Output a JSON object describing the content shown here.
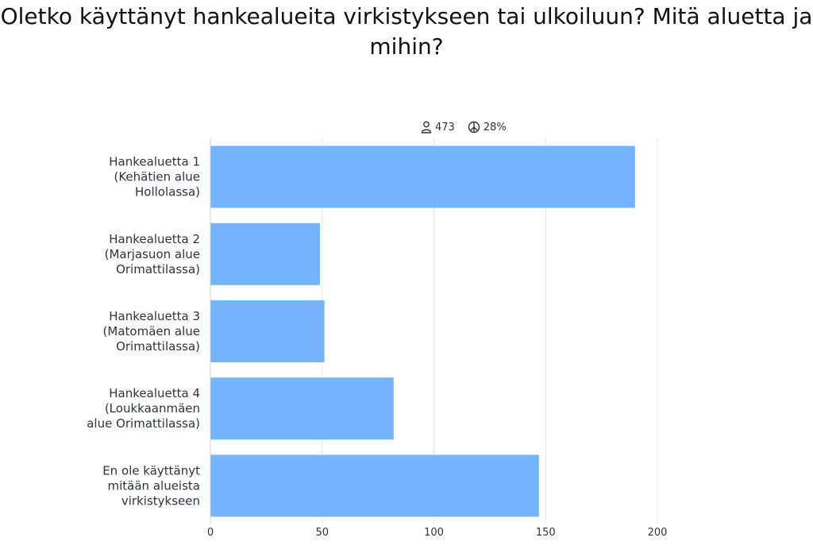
{
  "title": "Oletko käyttänyt hankealueita virkistykseen tai ulkoiluun? Mitä aluetta ja mihin?",
  "stats": {
    "respondents": "473",
    "percent": "28%",
    "respondents_icon": "person-icon",
    "percent_icon": "peace-icon"
  },
  "colors": {
    "bar": "#74b3fd",
    "grid": "#e6e6e6",
    "text": "#2b3440"
  },
  "chart_data": {
    "type": "bar",
    "orientation": "horizontal",
    "categories": [
      [
        "Hankealuetta 1",
        "(Kehätien alue",
        "Hollolassa)"
      ],
      [
        "Hankealuetta 2",
        "(Marjasuon alue",
        "Orimattilassa)"
      ],
      [
        "Hankealuetta 3",
        "(Matomäen alue",
        "Orimattilassa)"
      ],
      [
        "Hankealuetta 4",
        "(Loukkaanmäen",
        "alue Orimattilassa)"
      ],
      [
        "En ole käyttänyt",
        "mitään alueista",
        "virkistykseen"
      ]
    ],
    "values": [
      190,
      49,
      51,
      82,
      147
    ],
    "xlim": [
      0,
      200
    ],
    "xticks": [
      "0",
      "50",
      "100",
      "150",
      "200"
    ],
    "grid": true,
    "legend": "none"
  }
}
